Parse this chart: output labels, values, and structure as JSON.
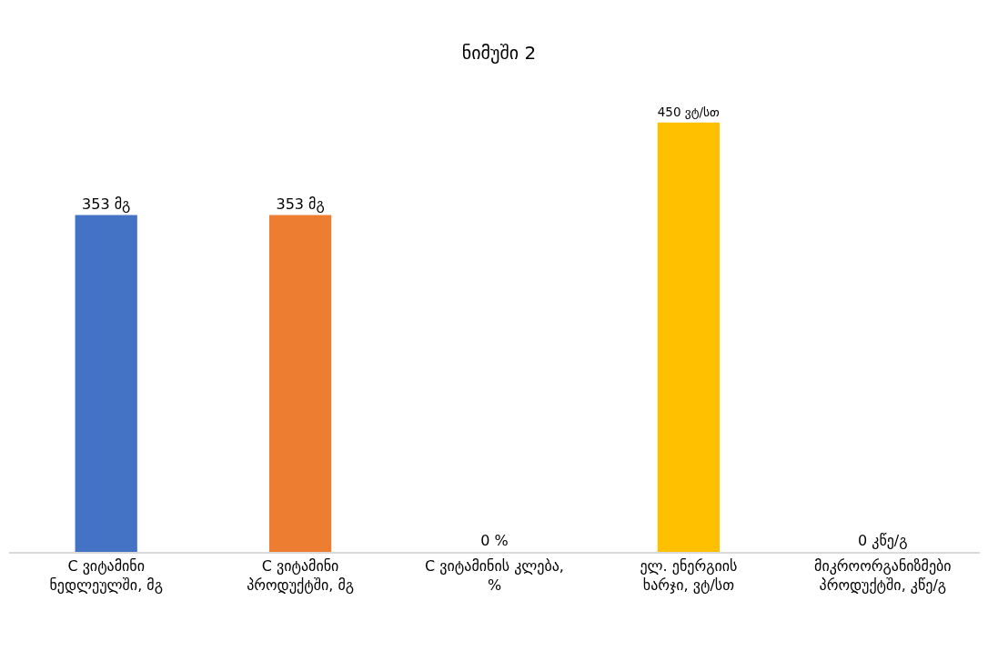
{
  "chart_data": {
    "type": "bar",
    "title": "ნიმუში 2",
    "categories": [
      "C ვიტამინი\nნედლეულში, მგ",
      "C ვიტამინი\nპროდუქტში, მგ",
      "C ვიტამინის კლება,\n%",
      "ელ. ენერგიის\nხარჯი, ვტ/სთ",
      "მიკროორგანიზმები\nპროდუქტში, კწე/გ"
    ],
    "values": [
      353,
      353,
      0,
      450,
      0
    ],
    "colors": [
      "#4472c4",
      "#ed7d31",
      null,
      "#ffc000",
      null
    ],
    "value_labels": [
      "353 მგ",
      "353 მგ",
      "0 %",
      "450 ვტ/სთ",
      "0 კწე/გ"
    ],
    "legend": false
  }
}
